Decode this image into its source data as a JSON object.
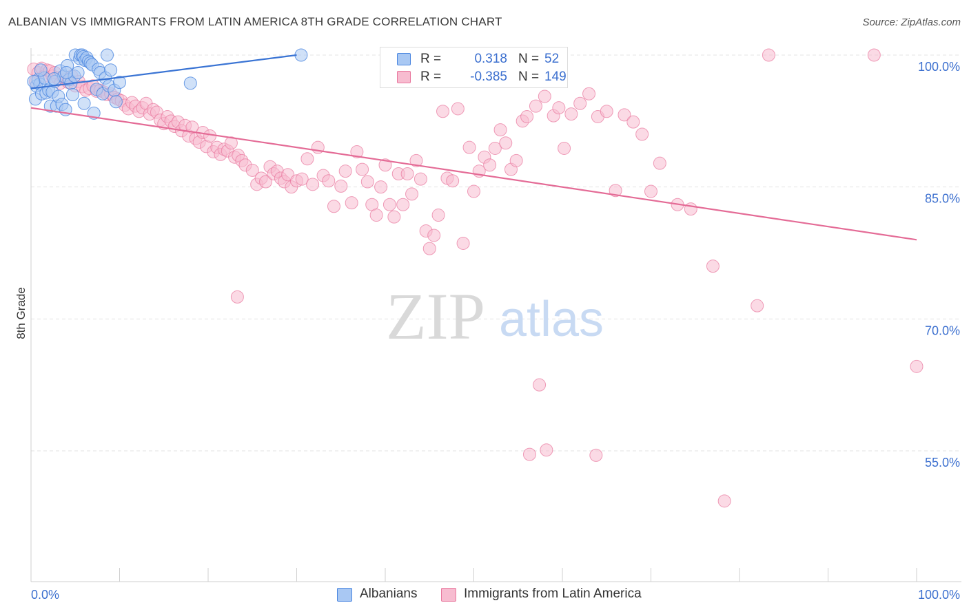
{
  "header": {
    "title": "ALBANIAN VS IMMIGRANTS FROM LATIN AMERICA 8TH GRADE CORRELATION CHART",
    "source": "Source: ZipAtlas.com"
  },
  "watermark": {
    "zip": "ZIP",
    "atlas": "atlas"
  },
  "legend": {
    "rows": [
      {
        "r_label": "R =",
        "r_value": "0.318",
        "n_label": "N =",
        "n_value": "52"
      },
      {
        "r_label": "R =",
        "r_value": "-0.385",
        "n_label": "N =",
        "n_value": "149"
      }
    ]
  },
  "colors": {
    "albanians": "#4a86e0",
    "albanians_fill": "#a9c8f3",
    "latin": "#e8769d",
    "latin_fill": "#f7bcd0",
    "tick_label": "#3b6fcf",
    "grid": "#e3e3e3"
  },
  "chart_data": {
    "type": "scatter",
    "title": "ALBANIAN VS IMMIGRANTS FROM LATIN AMERICA 8TH GRADE CORRELATION CHART",
    "xlabel": "",
    "ylabel": "8th Grade",
    "xlim": [
      0,
      100
    ],
    "ylim": [
      40,
      101.5
    ],
    "x_tick_labels": [
      "0.0%",
      "100.0%"
    ],
    "y_ticks": [
      55,
      70,
      85,
      100
    ],
    "y_tick_labels": [
      "55.0%",
      "70.0%",
      "85.0%",
      "100.0%"
    ],
    "grid": true,
    "legend_position": "top-center",
    "series": [
      {
        "name": "Albanians",
        "color": "#4a86e0",
        "r": 0.318,
        "n": 52,
        "trend": [
          [
            0.0,
            96.2
          ],
          [
            30.0,
            100.0
          ]
        ],
        "points": [
          [
            0.5,
            95.0
          ],
          [
            0.6,
            96.5
          ],
          [
            0.8,
            97.2
          ],
          [
            1.0,
            96.7
          ],
          [
            1.2,
            95.6
          ],
          [
            1.5,
            97.4
          ],
          [
            1.7,
            95.7
          ],
          [
            2.0,
            96.0
          ],
          [
            2.2,
            94.2
          ],
          [
            2.4,
            95.8
          ],
          [
            2.7,
            97.0
          ],
          [
            2.9,
            94.2
          ],
          [
            3.1,
            95.3
          ],
          [
            3.3,
            98.2
          ],
          [
            3.5,
            94.4
          ],
          [
            3.7,
            97.6
          ],
          [
            3.9,
            93.8
          ],
          [
            4.1,
            98.8
          ],
          [
            4.3,
            97.2
          ],
          [
            4.5,
            96.8
          ],
          [
            4.7,
            95.5
          ],
          [
            4.9,
            97.6
          ],
          [
            5.0,
            100.0
          ],
          [
            5.3,
            98.0
          ],
          [
            5.5,
            99.6
          ],
          [
            5.6,
            100.0
          ],
          [
            5.8,
            100.0
          ],
          [
            5.9,
            99.8
          ],
          [
            6.1,
            99.4
          ],
          [
            6.3,
            99.7
          ],
          [
            6.5,
            99.3
          ],
          [
            6.7,
            99.1
          ],
          [
            6.9,
            98.9
          ],
          [
            7.1,
            93.4
          ],
          [
            7.4,
            96.1
          ],
          [
            7.6,
            98.4
          ],
          [
            7.8,
            98.0
          ],
          [
            8.1,
            95.6
          ],
          [
            8.4,
            97.4
          ],
          [
            8.6,
            100.0
          ],
          [
            8.8,
            96.5
          ],
          [
            9.0,
            98.3
          ],
          [
            9.4,
            96.0
          ],
          [
            9.6,
            94.7
          ],
          [
            10.0,
            96.9
          ],
          [
            0.3,
            97.0
          ],
          [
            18.0,
            96.8
          ],
          [
            30.5,
            100.0
          ],
          [
            1.1,
            98.3
          ],
          [
            2.6,
            97.3
          ],
          [
            4.0,
            98.0
          ],
          [
            6.0,
            94.5
          ]
        ]
      },
      {
        "name": "Immigrants from Latin America",
        "color": "#e8769d",
        "r": -0.385,
        "n": 149,
        "trend": [
          [
            0.0,
            94.0
          ],
          [
            100.0,
            79.0
          ]
        ],
        "points": [
          [
            0.3,
            98.4
          ],
          [
            0.5,
            97.0
          ],
          [
            0.8,
            98.0
          ],
          [
            1.2,
            98.5
          ],
          [
            1.5,
            97.6
          ],
          [
            1.8,
            98.3
          ],
          [
            2.1,
            98.2
          ],
          [
            2.4,
            97.6
          ],
          [
            2.7,
            98.0
          ],
          [
            3.0,
            97.4
          ],
          [
            3.3,
            96.8
          ],
          [
            3.6,
            97.5
          ],
          [
            3.9,
            97.2
          ],
          [
            4.2,
            96.9
          ],
          [
            4.6,
            97.6
          ],
          [
            5.0,
            96.5
          ],
          [
            5.4,
            97.0
          ],
          [
            5.8,
            96.4
          ],
          [
            6.2,
            96.0
          ],
          [
            6.6,
            96.2
          ],
          [
            7.0,
            96.5
          ],
          [
            7.4,
            95.9
          ],
          [
            7.8,
            96.0
          ],
          [
            8.2,
            95.8
          ],
          [
            8.6,
            95.5
          ],
          [
            9.0,
            95.6
          ],
          [
            9.4,
            95.2
          ],
          [
            9.8,
            95.0
          ],
          [
            10.2,
            94.8
          ],
          [
            10.6,
            94.3
          ],
          [
            11.0,
            93.9
          ],
          [
            11.4,
            94.6
          ],
          [
            11.8,
            94.2
          ],
          [
            12.2,
            93.6
          ],
          [
            12.6,
            94.0
          ],
          [
            13.0,
            94.5
          ],
          [
            13.4,
            93.3
          ],
          [
            13.8,
            93.8
          ],
          [
            14.2,
            93.5
          ],
          [
            14.6,
            92.6
          ],
          [
            15.0,
            92.2
          ],
          [
            15.4,
            93.0
          ],
          [
            15.8,
            92.5
          ],
          [
            16.2,
            91.9
          ],
          [
            16.6,
            92.4
          ],
          [
            17.0,
            91.4
          ],
          [
            17.4,
            92.0
          ],
          [
            17.8,
            90.8
          ],
          [
            18.2,
            91.8
          ],
          [
            18.6,
            90.5
          ],
          [
            19.0,
            90.1
          ],
          [
            19.4,
            91.2
          ],
          [
            19.8,
            89.6
          ],
          [
            20.2,
            90.8
          ],
          [
            20.6,
            89.0
          ],
          [
            21.0,
            89.5
          ],
          [
            21.4,
            88.7
          ],
          [
            21.8,
            89.3
          ],
          [
            22.2,
            89.1
          ],
          [
            22.6,
            90.0
          ],
          [
            23.0,
            88.4
          ],
          [
            23.4,
            88.6
          ],
          [
            23.8,
            88.0
          ],
          [
            24.2,
            87.5
          ],
          [
            25.0,
            86.9
          ],
          [
            25.5,
            85.3
          ],
          [
            26.0,
            86.0
          ],
          [
            26.5,
            85.6
          ],
          [
            27.0,
            87.3
          ],
          [
            27.4,
            86.5
          ],
          [
            27.8,
            86.8
          ],
          [
            28.2,
            86.0
          ],
          [
            28.6,
            85.6
          ],
          [
            29.0,
            86.4
          ],
          [
            29.4,
            85.0
          ],
          [
            30.0,
            85.7
          ],
          [
            30.6,
            85.9
          ],
          [
            31.2,
            88.2
          ],
          [
            31.8,
            85.3
          ],
          [
            32.4,
            89.5
          ],
          [
            33.0,
            86.3
          ],
          [
            33.6,
            85.7
          ],
          [
            34.2,
            82.8
          ],
          [
            35.0,
            85.1
          ],
          [
            35.5,
            86.8
          ],
          [
            36.2,
            83.2
          ],
          [
            36.8,
            89.0
          ],
          [
            37.4,
            87.0
          ],
          [
            38.0,
            85.6
          ],
          [
            38.5,
            83.0
          ],
          [
            39.0,
            81.8
          ],
          [
            39.5,
            85.0
          ],
          [
            40.0,
            87.5
          ],
          [
            40.5,
            83.0
          ],
          [
            41.0,
            81.6
          ],
          [
            41.5,
            86.5
          ],
          [
            42.0,
            83.0
          ],
          [
            42.5,
            86.5
          ],
          [
            43.0,
            84.2
          ],
          [
            43.5,
            88.0
          ],
          [
            44.0,
            85.9
          ],
          [
            44.6,
            80.0
          ],
          [
            45.0,
            78.0
          ],
          [
            45.5,
            79.5
          ],
          [
            46.0,
            81.8
          ],
          [
            46.5,
            93.6
          ],
          [
            47.0,
            86.0
          ],
          [
            47.6,
            85.7
          ],
          [
            48.2,
            93.9
          ],
          [
            48.8,
            78.6
          ],
          [
            49.5,
            89.5
          ],
          [
            50.0,
            84.5
          ],
          [
            50.6,
            86.8
          ],
          [
            51.2,
            88.4
          ],
          [
            51.8,
            87.5
          ],
          [
            52.4,
            89.4
          ],
          [
            53.0,
            91.5
          ],
          [
            53.6,
            90.0
          ],
          [
            54.2,
            87.0
          ],
          [
            54.8,
            88.0
          ],
          [
            55.5,
            92.5
          ],
          [
            56.0,
            93.0
          ],
          [
            57.0,
            94.2
          ],
          [
            58.0,
            95.3
          ],
          [
            59.0,
            93.1
          ],
          [
            59.6,
            94.0
          ],
          [
            60.2,
            89.4
          ],
          [
            61.0,
            93.3
          ],
          [
            62.0,
            94.5
          ],
          [
            63.0,
            95.6
          ],
          [
            64.0,
            93.0
          ],
          [
            65.0,
            93.6
          ],
          [
            66.0,
            84.6
          ],
          [
            67.0,
            93.2
          ],
          [
            68.0,
            92.4
          ],
          [
            69.0,
            91.0
          ],
          [
            70.0,
            84.5
          ],
          [
            71.0,
            87.7
          ],
          [
            73.0,
            83.0
          ],
          [
            74.5,
            82.5
          ],
          [
            23.3,
            72.5
          ],
          [
            82.0,
            71.5
          ],
          [
            77.0,
            76.0
          ],
          [
            100.0,
            64.6
          ],
          [
            57.4,
            62.5
          ],
          [
            56.3,
            54.6
          ],
          [
            58.2,
            55.1
          ],
          [
            63.8,
            54.5
          ],
          [
            78.3,
            49.3
          ],
          [
            83.3,
            100.0
          ],
          [
            95.2,
            100.0
          ]
        ]
      }
    ]
  },
  "bottom_legend": {
    "albanians": "Albanians",
    "latin": "Immigrants from Latin America"
  }
}
